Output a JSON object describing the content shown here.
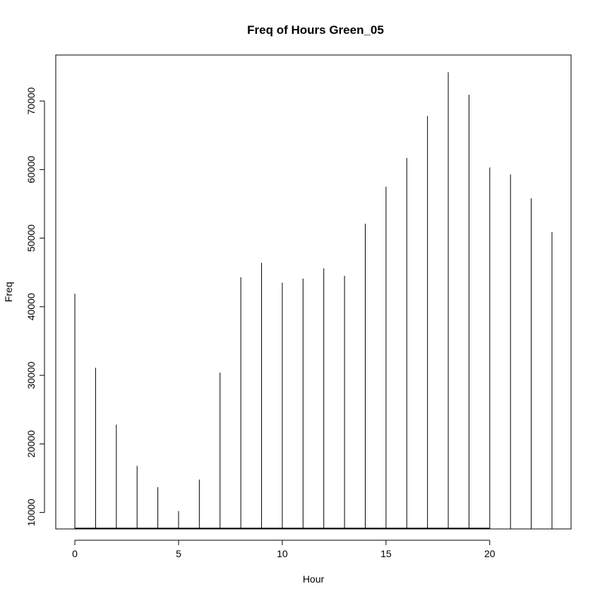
{
  "chart_data": {
    "type": "bar",
    "subtype": "histogram-spikes",
    "title": "Freq of Hours Green_05",
    "xlabel": "Hour",
    "ylabel": "Freq",
    "x": [
      0,
      1,
      2,
      3,
      4,
      5,
      6,
      7,
      8,
      9,
      10,
      11,
      12,
      13,
      14,
      15,
      16,
      17,
      18,
      19,
      20,
      21,
      22,
      23
    ],
    "values": [
      41900,
      31100,
      22800,
      16800,
      13700,
      10200,
      14800,
      30400,
      44300,
      46400,
      43500,
      44100,
      45600,
      44500,
      52100,
      57500,
      61700,
      67800,
      74200,
      70900,
      60300,
      59300,
      55800,
      50900
    ],
    "xlim": [
      -0.92,
      23.92
    ],
    "ylim": [
      7600,
      76700
    ],
    "xticks": [
      0,
      5,
      10,
      15,
      20
    ],
    "xtick_labels": [
      "0",
      "5",
      "10",
      "15",
      "20"
    ],
    "yticks": [
      10000,
      20000,
      30000,
      40000,
      50000,
      60000,
      70000
    ],
    "ytick_labels": [
      "10000",
      "20000",
      "30000",
      "40000",
      "50000",
      "60000",
      "70000"
    ],
    "baseline_hours": [
      0,
      20
    ],
    "grid": false,
    "legend": "none",
    "colors": {
      "line": "#000000",
      "background": "#ffffff"
    }
  }
}
